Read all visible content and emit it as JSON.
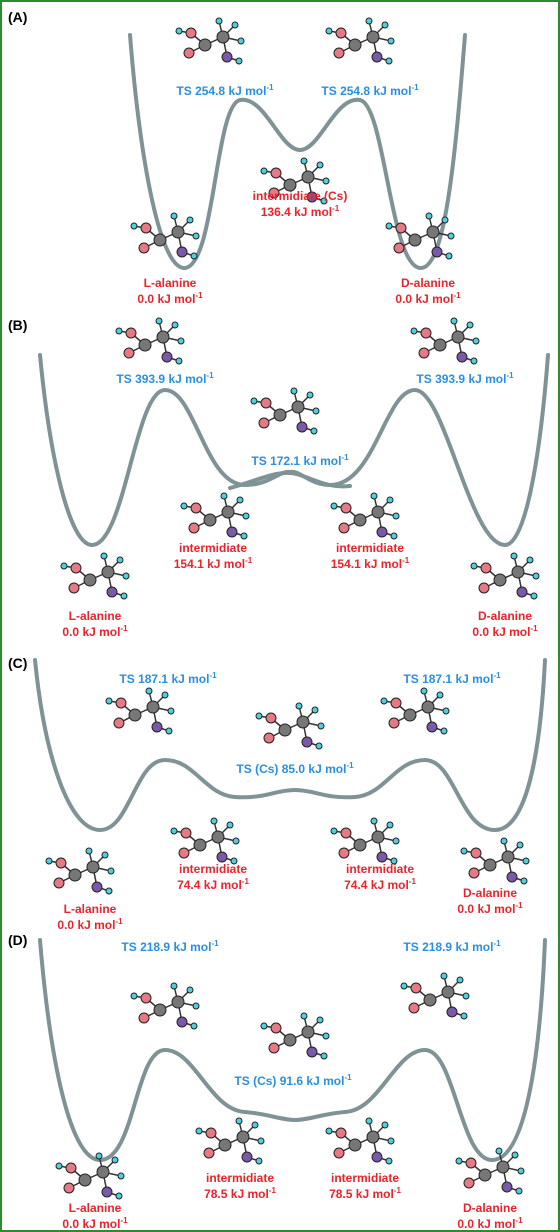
{
  "panels": [
    {
      "label": "(A)",
      "states": [
        {
          "lines": [
            "TS 254.8 kJ mol"
          ],
          "sup": "-1"
        },
        {
          "lines": [
            "TS 254.8 kJ mol"
          ],
          "sup": "-1"
        },
        {
          "lines": [
            "intermidiate (Cs)",
            "136.4 kJ mol"
          ],
          "sup": "-1"
        },
        {
          "lines": [
            "L-alanine",
            "0.0 kJ mol"
          ],
          "sup": "-1"
        },
        {
          "lines": [
            "D-alanine",
            "0.0 kJ mol"
          ],
          "sup": "-1"
        }
      ]
    },
    {
      "label": "(B)",
      "states": [
        {
          "lines": [
            "TS 393.9 kJ mol"
          ],
          "sup": "-1"
        },
        {
          "lines": [
            "TS 393.9 kJ mol"
          ],
          "sup": "-1"
        },
        {
          "lines": [
            "TS 172.1 kJ mol"
          ],
          "sup": "-1"
        },
        {
          "lines": [
            "intermidiate",
            "154.1 kJ mol"
          ],
          "sup": "-1"
        },
        {
          "lines": [
            "intermidiate",
            "154.1 kJ mol"
          ],
          "sup": "-1"
        },
        {
          "lines": [
            "L-alanine",
            "0.0 kJ mol"
          ],
          "sup": "-1"
        },
        {
          "lines": [
            "D-alanine",
            "0.0 kJ mol"
          ],
          "sup": "-1"
        }
      ]
    },
    {
      "label": "(C)",
      "states": [
        {
          "lines": [
            "TS 187.1 kJ mol"
          ],
          "sup": "-1"
        },
        {
          "lines": [
            "TS 187.1 kJ mol"
          ],
          "sup": "-1"
        },
        {
          "lines": [
            "TS (Cs) 85.0 kJ mol"
          ],
          "sup": "-1"
        },
        {
          "lines": [
            "intermidiate",
            "74.4 kJ mol"
          ],
          "sup": "-1"
        },
        {
          "lines": [
            "intermidiate",
            "74.4 kJ mol"
          ],
          "sup": "-1"
        },
        {
          "lines": [
            "L-alanine",
            "0.0 kJ mol"
          ],
          "sup": "-1"
        },
        {
          "lines": [
            "D-alanine",
            "0.0 kJ mol"
          ],
          "sup": "-1"
        }
      ]
    },
    {
      "label": "(D)",
      "states": [
        {
          "lines": [
            "TS 218.9 kJ mol"
          ],
          "sup": "-1"
        },
        {
          "lines": [
            "TS 218.9 kJ mol"
          ],
          "sup": "-1"
        },
        {
          "lines": [
            "TS (Cs) 91.6 kJ mol"
          ],
          "sup": "-1"
        },
        {
          "lines": [
            "intermidiate",
            "78.5 kJ mol"
          ],
          "sup": "-1"
        },
        {
          "lines": [
            "intermidiate",
            "78.5 kJ mol"
          ],
          "sup": "-1"
        },
        {
          "lines": [
            "L-alanine",
            "0.0 kJ mol"
          ],
          "sup": "-1"
        },
        {
          "lines": [
            "D-alanine",
            "0.0 kJ mol"
          ],
          "sup": "-1"
        }
      ]
    }
  ]
}
